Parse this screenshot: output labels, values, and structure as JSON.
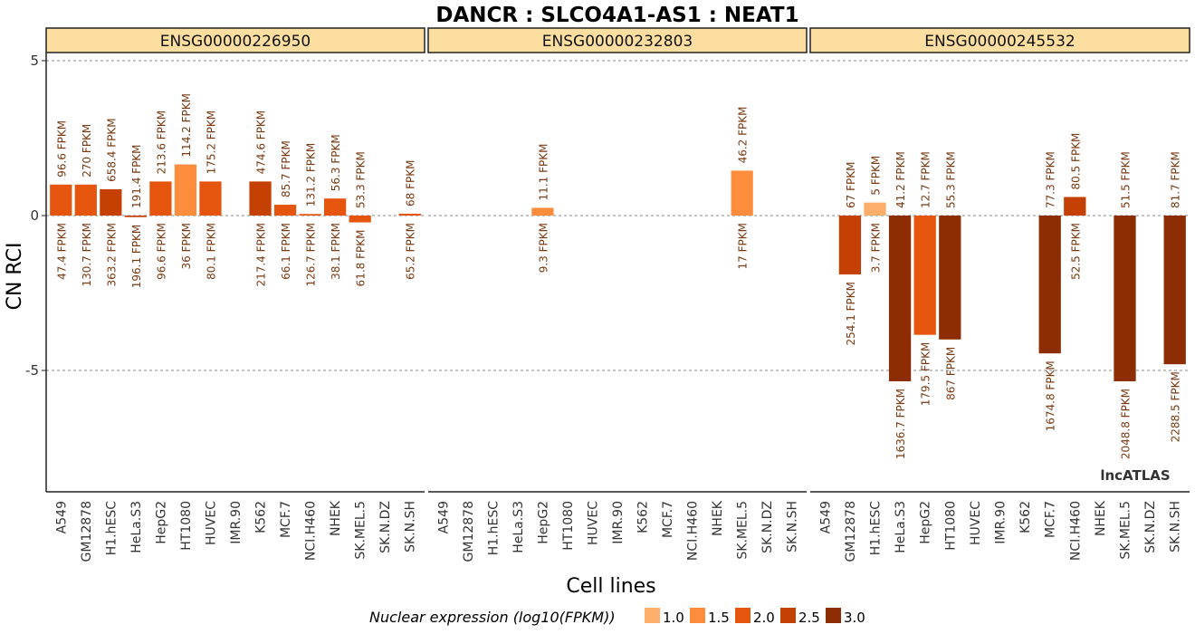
{
  "chart_data": {
    "type": "bar",
    "title": "DANCR : SLCO4A1-AS1 : NEAT1",
    "xlabel": "Cell lines",
    "ylabel": "CN RCI",
    "ylim": [
      -9,
      5
    ],
    "yticks": [
      5,
      0,
      -5
    ],
    "grid": "dashed horizontal at ticks",
    "watermark": "lncATLAS",
    "categories": [
      "A549",
      "GM12878",
      "H1.hESC",
      "HeLa.S3",
      "HepG2",
      "HT1080",
      "HUVEC",
      "IMR.90",
      "K562",
      "MCF.7",
      "NCI.H460",
      "NHEK",
      "SK.MEL.5",
      "SK.N.DZ",
      "SK.N.SH"
    ],
    "legend": {
      "title": "Nuclear expression (log10(FPKM))",
      "placement": "bottom",
      "entries": [
        {
          "label": "1.0",
          "color": "#FDAE6B"
        },
        {
          "label": "1.5",
          "color": "#FD8D3C"
        },
        {
          "label": "2.0",
          "color": "#E6550D"
        },
        {
          "label": "2.5",
          "color": "#C44103"
        },
        {
          "label": "3.0",
          "color": "#8C2D04"
        }
      ]
    },
    "panels": [
      {
        "name": "ENSG00000226950",
        "bars": [
          {
            "cell": "A549",
            "value": 1.0,
            "color": "#E6550D",
            "cyto": "96.6 FPKM",
            "nuc": "47.4 FPKM"
          },
          {
            "cell": "GM12878",
            "value": 1.0,
            "color": "#E6550D",
            "cyto": "270 FPKM",
            "nuc": "130.7 FPKM"
          },
          {
            "cell": "H1.hESC",
            "value": 0.85,
            "color": "#C44103",
            "cyto": "658.4 FPKM",
            "nuc": "363.2 FPKM"
          },
          {
            "cell": "HeLa.S3",
            "value": -0.05,
            "color": "#C44103",
            "cyto": "191.4 FPKM",
            "nuc": "196.1 FPKM"
          },
          {
            "cell": "HepG2",
            "value": 1.1,
            "color": "#E6550D",
            "cyto": "213.6 FPKM",
            "nuc": "96.6 FPKM"
          },
          {
            "cell": "HT1080",
            "value": 1.65,
            "color": "#FD8D3C",
            "cyto": "114.2 FPKM",
            "nuc": "36 FPKM"
          },
          {
            "cell": "HUVEC",
            "value": 1.1,
            "color": "#E6550D",
            "cyto": "175.2 FPKM",
            "nuc": "80.1 FPKM"
          },
          {
            "cell": "K562",
            "value": 1.1,
            "color": "#C44103",
            "cyto": "474.6 FPKM",
            "nuc": "217.4 FPKM"
          },
          {
            "cell": "MCF.7",
            "value": 0.35,
            "color": "#E6550D",
            "cyto": "85.7 FPKM",
            "nuc": "66.1 FPKM"
          },
          {
            "cell": "NCI.H460",
            "value": 0.05,
            "color": "#E6550D",
            "cyto": "131.2 FPKM",
            "nuc": "126.7 FPKM"
          },
          {
            "cell": "NHEK",
            "value": 0.55,
            "color": "#E6550D",
            "cyto": "56.3 FPKM",
            "nuc": "38.1 FPKM"
          },
          {
            "cell": "SK.MEL.5",
            "value": -0.22,
            "color": "#E6550D",
            "cyto": "53.3 FPKM",
            "nuc": "61.8 FPKM"
          },
          {
            "cell": "SK.N.SH",
            "value": 0.06,
            "color": "#E6550D",
            "cyto": "68 FPKM",
            "nuc": "65.2 FPKM"
          }
        ]
      },
      {
        "name": "ENSG00000232803",
        "bars": [
          {
            "cell": "HepG2",
            "value": 0.25,
            "color": "#FD8D3C",
            "cyto": "11.1 FPKM",
            "nuc": "9.3 FPKM"
          },
          {
            "cell": "SK.MEL.5",
            "value": 1.45,
            "color": "#FD8D3C",
            "cyto": "46.2 FPKM",
            "nuc": "17 FPKM"
          }
        ]
      },
      {
        "name": "ENSG00000245532",
        "bars": [
          {
            "cell": "GM12878",
            "value": -1.9,
            "color": "#C44103",
            "cyto": "67 FPKM",
            "nuc": "254.1 FPKM"
          },
          {
            "cell": "H1.hESC",
            "value": 0.42,
            "color": "#FDAE6B",
            "cyto": "5 FPKM",
            "nuc": "3.7 FPKM"
          },
          {
            "cell": "HeLa.S3",
            "value": -5.35,
            "color": "#8C2D04",
            "cyto": "41.2 FPKM",
            "nuc": "1636.7 FPKM"
          },
          {
            "cell": "HepG2",
            "value": -3.85,
            "color": "#E6550D",
            "cyto": "12.7 FPKM",
            "nuc": "179.5 FPKM"
          },
          {
            "cell": "HT1080",
            "value": -4.0,
            "color": "#8C2D04",
            "cyto": "55.3 FPKM",
            "nuc": "867 FPKM"
          },
          {
            "cell": "MCF.7",
            "value": -4.45,
            "color": "#8C2D04",
            "cyto": "77.3 FPKM",
            "nuc": "1674.8 FPKM"
          },
          {
            "cell": "NCI.H460",
            "value": 0.6,
            "color": "#C44103",
            "cyto": "80.5 FPKM",
            "nuc": "52.5 FPKM"
          },
          {
            "cell": "SK.MEL.5",
            "value": -5.35,
            "color": "#8C2D04",
            "cyto": "51.5 FPKM",
            "nuc": "2048.8 FPKM"
          },
          {
            "cell": "SK.N.SH",
            "value": -4.8,
            "color": "#8C2D04",
            "cyto": "81.7 FPKM",
            "nuc": "2288.5 FPKM"
          }
        ]
      }
    ]
  }
}
